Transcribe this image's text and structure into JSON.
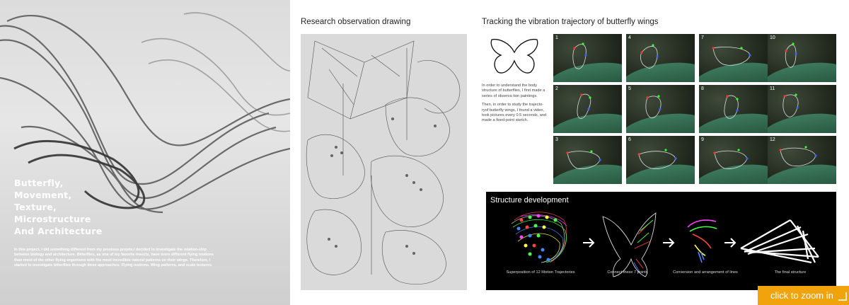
{
  "left": {
    "title_lines": [
      "Butterfly,",
      "Movement,",
      "Texture,",
      "Microstructure",
      "And Architecture"
    ],
    "body": "In this project, I did something different from my previous projets.I decided to investigate the relation-ship between biology and architecture. Bitterflies, as one of my favorite insects, have more different flying motions than most of the other flying organisms with the most incredible natural patterns on their wings. Therefore, I started to investigate bitterflies through three approaches: Flying motions, Wing patterns, and scale textures."
  },
  "research": {
    "title": "Research observation drawing"
  },
  "tracking": {
    "title": "Tracking the vibration trajectory of butterfly wings",
    "desc1": "In order to understand the body structure of butterflies, I first made a series of observa tion paintings.",
    "desc2": "Then, in order to study the trajecto-ryof butterfly wings, I found a video, took pictures every 0.5 seconds, and made a fixed-point sketch.",
    "frames": [
      "1",
      "4",
      "7",
      "10",
      "2",
      "5",
      "8",
      "11",
      "3",
      "6",
      "9",
      "12"
    ]
  },
  "structure": {
    "title": "Structure development",
    "captions": [
      "Superposition of 12 Motion Trajectories",
      "Connect these 7 points",
      "Conversion and arrangement of lines",
      "The final structure"
    ]
  },
  "zoom": {
    "label": "click to zoom in"
  },
  "colors": {
    "accent": "#f0a30a",
    "panel_bg": "#000000"
  }
}
